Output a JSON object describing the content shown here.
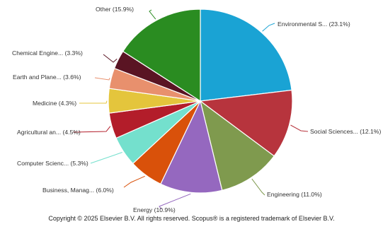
{
  "chart_data": {
    "type": "pie",
    "title": "",
    "slices": [
      {
        "label": "Environmental S... (23.1%)",
        "value": 23.1,
        "color": "#1aa3d4"
      },
      {
        "label": "Social Sciences... (12.1%)",
        "value": 12.1,
        "color": "#b7343d"
      },
      {
        "label": "Engineering (11.0%)",
        "value": 11.0,
        "color": "#7f9a4e"
      },
      {
        "label": "Energy (10.9%)",
        "value": 10.9,
        "color": "#9568bf"
      },
      {
        "label": "Business, Manag... (6.0%)",
        "value": 6.0,
        "color": "#d9510a"
      },
      {
        "label": "Computer Scienc... (5.3%)",
        "value": 5.3,
        "color": "#74e0cd"
      },
      {
        "label": "Agricultural an... (4.5%)",
        "value": 4.5,
        "color": "#b31d2a"
      },
      {
        "label": "Medicine (4.3%)",
        "value": 4.3,
        "color": "#e4c53c"
      },
      {
        "label": "Earth and Plane... (3.6%)",
        "value": 3.6,
        "color": "#e8906d"
      },
      {
        "label": "Chemical Engine... (3.3%)",
        "value": 3.3,
        "color": "#5a1423"
      },
      {
        "label": "Other (15.9%)",
        "value": 15.9,
        "color": "#2a8c21"
      }
    ]
  },
  "footer": {
    "copyright": "Copyright © 2025 Elsevier B.V. All rights reserved. Scopus® is a registered trademark of Elsevier B.V."
  }
}
